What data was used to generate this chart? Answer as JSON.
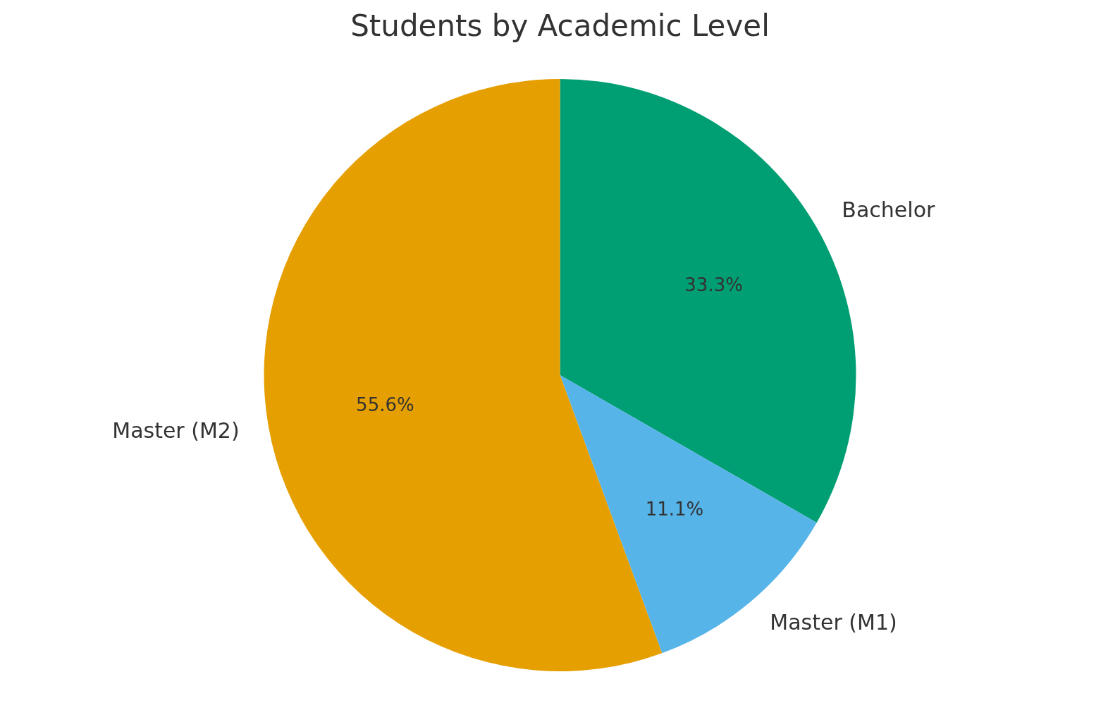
{
  "chart_data": {
    "type": "pie",
    "title": "Students by Academic Level",
    "categories": [
      "Bachelor",
      "Master (M1)",
      "Master (M2)"
    ],
    "values": [
      33.3,
      11.1,
      55.6
    ],
    "colors": [
      "#009e73",
      "#56b4e9",
      "#e69f00"
    ],
    "value_labels": [
      "33.3%",
      "11.1%",
      "55.6%"
    ]
  }
}
